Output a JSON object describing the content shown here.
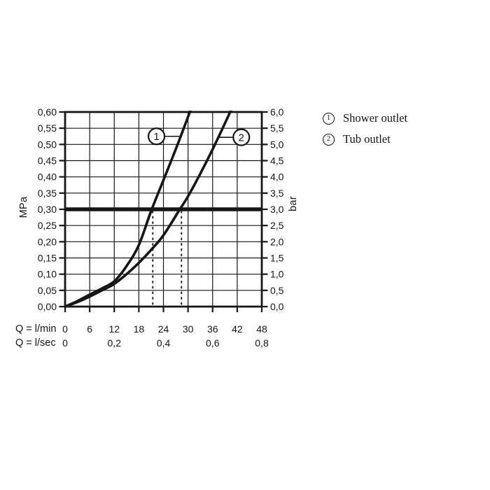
{
  "colors": {
    "ink": "#161616",
    "background": "#ffffff"
  },
  "legend": {
    "items": [
      {
        "symbol": "1",
        "label": "Shower outlet"
      },
      {
        "symbol": "2",
        "label": "Tub outlet"
      }
    ]
  },
  "chart_data": {
    "type": "line",
    "title": "",
    "x_max_lmin": 48,
    "y_max_bar": 6.0,
    "grid": true,
    "y_axis_left": {
      "unit": "MPa",
      "ticks": [
        "0,60",
        "0,55",
        "0,50",
        "0,45",
        "0,40",
        "0,35",
        "0,30",
        "0,25",
        "0,20",
        "0,15",
        "0,10",
        "0,05",
        "0,00"
      ]
    },
    "y_axis_right": {
      "unit": "bar",
      "ticks": [
        "6,0",
        "5,5",
        "5,0",
        "4,5",
        "4,0",
        "3,5",
        "3,0",
        "2,5",
        "2,0",
        "1,5",
        "1,0",
        "0,5",
        "0,0"
      ]
    },
    "x_axis": {
      "unit_primary": "Q = l/min",
      "ticks_lmin": [
        "0",
        "6",
        "12",
        "18",
        "24",
        "30",
        "36",
        "42",
        "48"
      ],
      "unit_secondary": "Q = l/sec",
      "ticks_lsec": [
        {
          "label": "0",
          "lmin": 0
        },
        {
          "label": "0,2",
          "lmin": 12
        },
        {
          "label": "0,4",
          "lmin": 24
        },
        {
          "label": "0,6",
          "lmin": 36
        },
        {
          "label": "0,8",
          "lmin": 48
        }
      ]
    },
    "reference_line_bar": 3.0,
    "drop_lines_lmin": [
      21.4,
      28.4
    ],
    "series": [
      {
        "name": "Shower outlet",
        "callout": "1",
        "points": [
          [
            0,
            0
          ],
          [
            3,
            0.17
          ],
          [
            6,
            0.37
          ],
          [
            9,
            0.56
          ],
          [
            12,
            0.78
          ],
          [
            15,
            1.25
          ],
          [
            18,
            1.9
          ],
          [
            21,
            2.95
          ],
          [
            24,
            3.9
          ],
          [
            27,
            4.85
          ],
          [
            30,
            5.85
          ],
          [
            31,
            6.2
          ]
        ],
        "callout_pos": {
          "lmin": 22.3,
          "bar": 5.25
        },
        "callout_line": [
          24.4,
          28.2
        ]
      },
      {
        "name": "Tub outlet",
        "callout": "2",
        "points": [
          [
            0,
            0
          ],
          [
            3,
            0.14
          ],
          [
            6,
            0.31
          ],
          [
            9,
            0.5
          ],
          [
            12,
            0.7
          ],
          [
            15,
            1.0
          ],
          [
            18,
            1.35
          ],
          [
            21,
            1.75
          ],
          [
            24,
            2.2
          ],
          [
            28,
            3.0
          ],
          [
            30,
            3.4
          ],
          [
            33,
            4.1
          ],
          [
            36,
            4.85
          ],
          [
            39,
            5.65
          ],
          [
            41,
            6.2
          ]
        ],
        "callout_pos": {
          "lmin": 43.0,
          "bar": 5.22
        },
        "callout_line": [
          37.4,
          40.9
        ]
      }
    ]
  }
}
